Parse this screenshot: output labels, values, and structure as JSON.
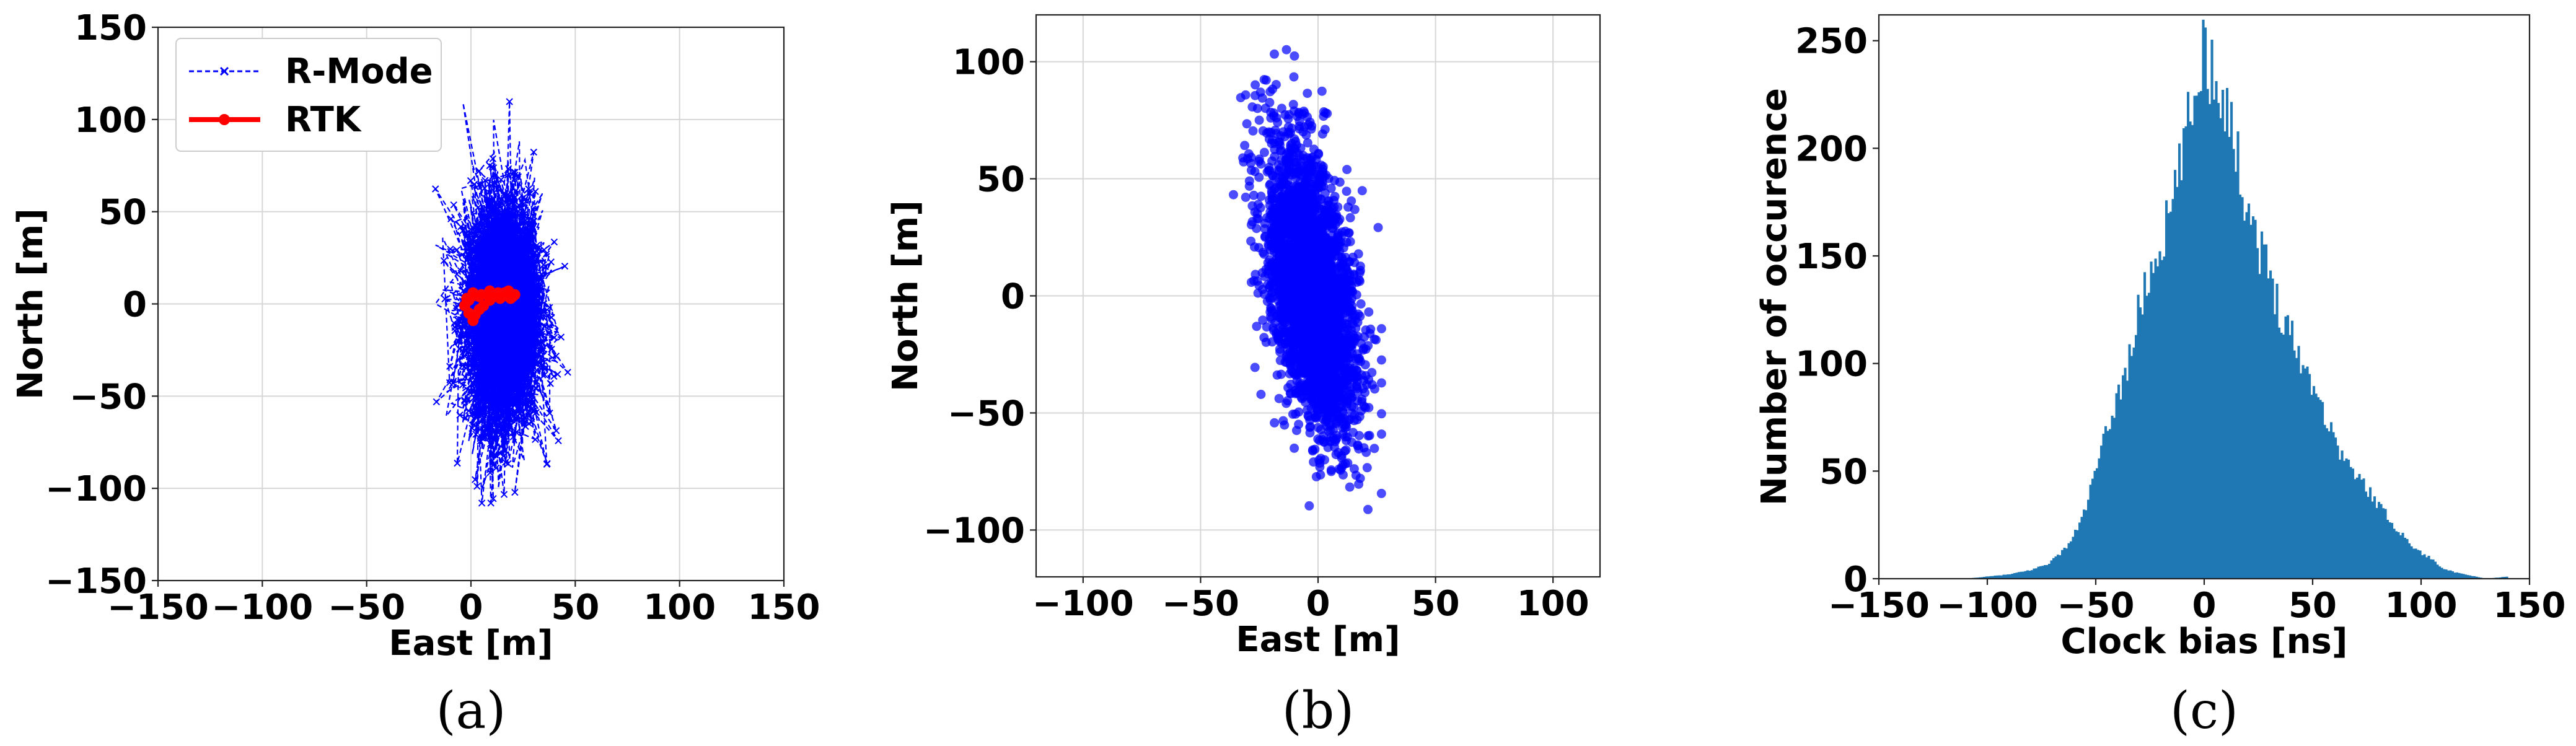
{
  "chart_data": [
    {
      "type": "line",
      "caption": "(a)",
      "xlabel": "East   [m]",
      "ylabel": "North   [m]",
      "xlim": [
        -150,
        150
      ],
      "ylim": [
        -150,
        150
      ],
      "xticks": [
        -150,
        -100,
        -50,
        0,
        50,
        100,
        150
      ],
      "yticks": [
        -150,
        -100,
        -50,
        0,
        50,
        100,
        150
      ],
      "grid": true,
      "legend_position": "top-left",
      "series": [
        {
          "name": "R-Mode",
          "color": "#0000ff",
          "line_style": "dashed",
          "marker": "x",
          "description_values": {
            "east_center": 15,
            "north_center": 0,
            "east_min": -17,
            "east_max": 50,
            "north_min": -108,
            "north_max": 110
          }
        },
        {
          "name": "RTK",
          "color": "#ff0000",
          "line_style": "solid",
          "marker": "o",
          "points": [
            [
              -2,
              3
            ],
            [
              1,
              6
            ],
            [
              5,
              5
            ],
            [
              9,
              7
            ],
            [
              13,
              6
            ],
            [
              18,
              7
            ],
            [
              21,
              5
            ],
            [
              19,
              3
            ],
            [
              14,
              3
            ],
            [
              9,
              2
            ],
            [
              6,
              -1
            ],
            [
              4,
              -3
            ],
            [
              2,
              -6
            ],
            [
              1,
              -9
            ],
            [
              -1,
              -5
            ],
            [
              -3,
              -1
            ],
            [
              -1,
              2
            ],
            [
              4,
              4
            ],
            [
              10,
              5
            ],
            [
              16,
              6
            ],
            [
              20,
              4
            ]
          ]
        }
      ]
    },
    {
      "type": "scatter",
      "caption": "(b)",
      "xlabel": "East   [m]",
      "ylabel": "North   [m]",
      "xlim": [
        -120,
        120
      ],
      "ylim": [
        -120,
        120
      ],
      "xticks": [
        -100,
        -50,
        0,
        50,
        100
      ],
      "yticks": [
        -100,
        -50,
        0,
        50,
        100
      ],
      "grid": true,
      "series": [
        {
          "name": "",
          "color": "#0000ff",
          "marker": "o",
          "description_values": {
            "east_center": -3,
            "north_center": 3,
            "east_min": -36,
            "east_max": 27,
            "north_min": -106,
            "north_max": 113
          }
        }
      ]
    },
    {
      "type": "bar",
      "caption": "(c)",
      "xlabel": "Clock bias  [ns]",
      "ylabel": "Number of occurence",
      "xlim": [
        -150,
        150
      ],
      "ylim": [
        0,
        262
      ],
      "xticks": [
        -150,
        -100,
        -50,
        0,
        50,
        100,
        150
      ],
      "yticks": [
        0,
        50,
        100,
        150,
        200,
        250
      ],
      "grid": false,
      "color": "#1f77b4",
      "histogram_envelope": [
        [
          -110,
          0
        ],
        [
          -100,
          1
        ],
        [
          -90,
          2
        ],
        [
          -80,
          4
        ],
        [
          -72,
          7
        ],
        [
          -65,
          13
        ],
        [
          -60,
          20
        ],
        [
          -55,
          32
        ],
        [
          -50,
          50
        ],
        [
          -45,
          68
        ],
        [
          -40,
          85
        ],
        [
          -35,
          100
        ],
        [
          -30,
          125
        ],
        [
          -25,
          142
        ],
        [
          -20,
          155
        ],
        [
          -15,
          172
        ],
        [
          -12,
          185
        ],
        [
          -10,
          200
        ],
        [
          -7,
          212
        ],
        [
          -5,
          222
        ],
        [
          -3,
          230
        ],
        [
          -1,
          248
        ],
        [
          1,
          246
        ],
        [
          3,
          235
        ],
        [
          5,
          238
        ],
        [
          7,
          230
        ],
        [
          9,
          225
        ],
        [
          12,
          215
        ],
        [
          15,
          195
        ],
        [
          18,
          182
        ],
        [
          20,
          176
        ],
        [
          25,
          155
        ],
        [
          30,
          142
        ],
        [
          35,
          125
        ],
        [
          40,
          115
        ],
        [
          45,
          100
        ],
        [
          50,
          92
        ],
        [
          55,
          78
        ],
        [
          60,
          65
        ],
        [
          65,
          55
        ],
        [
          70,
          48
        ],
        [
          75,
          42
        ],
        [
          80,
          35
        ],
        [
          85,
          28
        ],
        [
          90,
          22
        ],
        [
          95,
          16
        ],
        [
          100,
          12
        ],
        [
          105,
          9
        ],
        [
          110,
          5
        ],
        [
          115,
          3
        ],
        [
          120,
          2
        ],
        [
          125,
          1
        ],
        [
          130,
          0
        ],
        [
          140,
          1
        ]
      ]
    }
  ]
}
